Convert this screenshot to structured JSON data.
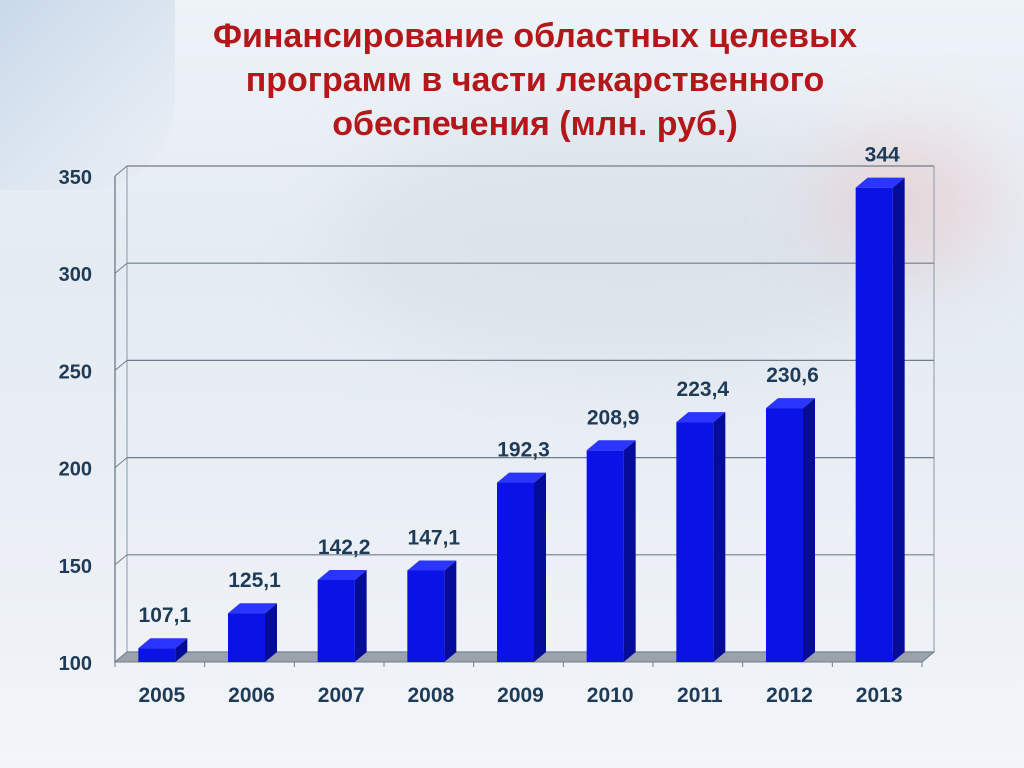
{
  "slide": {
    "title_lines": [
      "Финансирование областных целевых",
      "программ в части лекарственного",
      "обеспечения (млн. руб.)"
    ]
  },
  "colors": {
    "title": "#b3171a",
    "bar_front": "#0a12e6",
    "bar_side": "#050c9a",
    "bar_top": "#2a35ff",
    "labels": "#1f3b57"
  },
  "chart_data": {
    "type": "bar",
    "title": "Финансирование областных целевых программ в части лекарственного обеспечения (млн. руб.)",
    "categories": [
      "2005",
      "2006",
      "2007",
      "2008",
      "2009",
      "2010",
      "2011",
      "2012",
      "2013"
    ],
    "values": [
      107.1,
      125.1,
      142.2,
      147.1,
      192.3,
      208.9,
      223.4,
      230.6,
      344
    ],
    "data_labels": [
      "107,1",
      "125,1",
      "142,2",
      "147,1",
      "192,3",
      "208,9",
      "223,4",
      "230,6",
      "344"
    ],
    "ylim": [
      100,
      350
    ],
    "yticks": [
      100,
      150,
      200,
      250,
      300,
      350
    ],
    "grid": true,
    "legend": "none",
    "xlabel": "",
    "ylabel": ""
  }
}
